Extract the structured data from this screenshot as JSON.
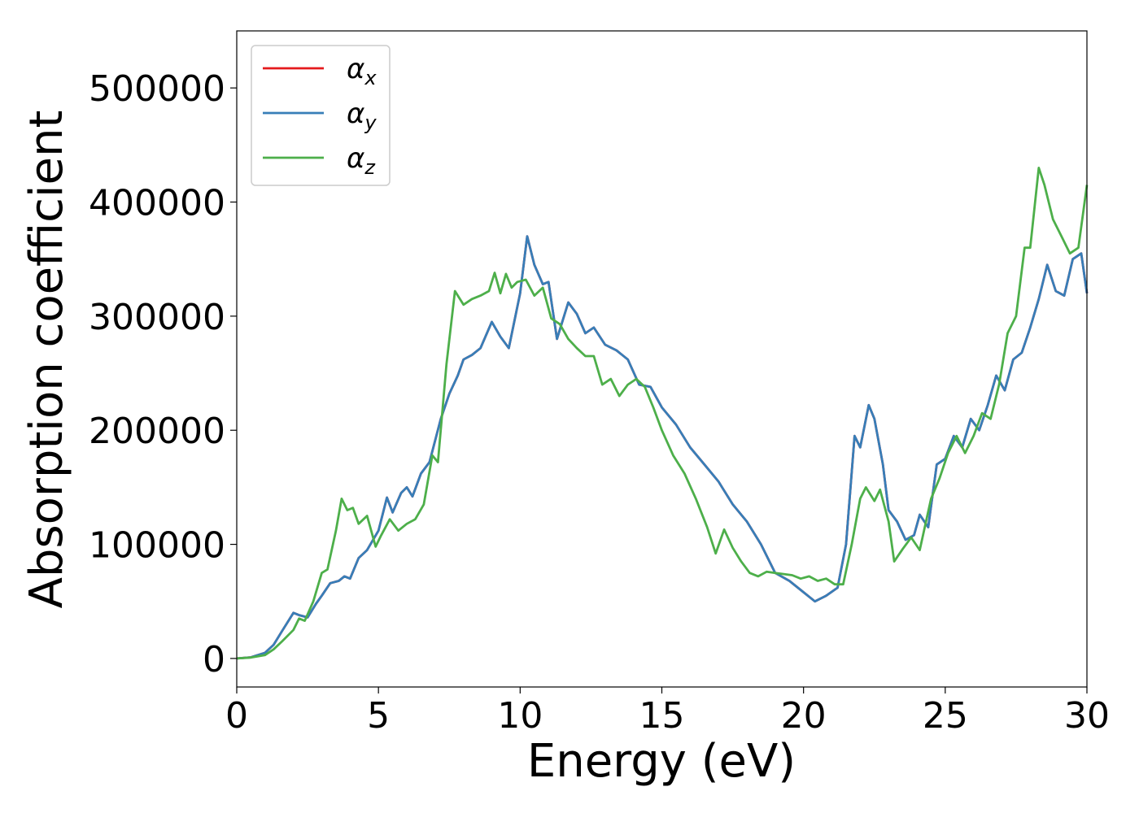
{
  "chart_data": {
    "type": "line",
    "title": "",
    "xlabel": "Energy (eV)",
    "ylabel": "Absorption coefficient",
    "xlim": [
      0,
      30
    ],
    "ylim": [
      -25000,
      550000
    ],
    "xticks": [
      0,
      5,
      10,
      15,
      20,
      25,
      30
    ],
    "yticks": [
      0,
      100000,
      200000,
      300000,
      400000,
      500000
    ],
    "xtick_labels": [
      "0",
      "5",
      "10",
      "15",
      "20",
      "25",
      "30"
    ],
    "ytick_labels": [
      "0",
      "100000",
      "200000",
      "300000",
      "400000",
      "500000"
    ],
    "grid": false,
    "legend_position": "top-left",
    "series": [
      {
        "name": "α_x",
        "legend_base": "α",
        "legend_sub": "x",
        "color": "#e41a1c",
        "x": [
          0,
          0.5,
          1.0,
          1.3,
          1.6,
          2.0,
          2.2,
          2.5,
          2.8,
          3.0,
          3.3,
          3.6,
          3.8,
          4.0,
          4.3,
          4.6,
          5.0,
          5.3,
          5.5,
          5.8,
          6.0,
          6.2,
          6.5,
          6.8,
          7.2,
          7.5,
          7.8,
          8.0,
          8.3,
          8.6,
          9.0,
          9.3,
          9.6,
          10.0,
          10.25,
          10.5,
          10.8,
          11.0,
          11.3,
          11.7,
          12.0,
          12.3,
          12.6,
          13.0,
          13.4,
          13.8,
          14.2,
          14.6,
          15.0,
          15.5,
          16.0,
          16.5,
          17.0,
          17.5,
          18.0,
          18.5,
          19.0,
          19.5,
          20.0,
          20.4,
          20.8,
          21.2,
          21.5,
          21.8,
          22.0,
          22.3,
          22.5,
          22.8,
          23.0,
          23.3,
          23.6,
          23.9,
          24.1,
          24.4,
          24.7,
          25.0,
          25.3,
          25.6,
          25.9,
          26.2,
          26.5,
          26.8,
          27.1,
          27.4,
          27.7,
          28.0,
          28.3,
          28.6,
          28.9,
          29.2,
          29.5,
          29.8,
          30.0
        ],
        "values": [
          0,
          1000,
          5000,
          12000,
          24000,
          40000,
          38000,
          36000,
          48000,
          55000,
          66000,
          68000,
          72000,
          70000,
          88000,
          95000,
          112000,
          141000,
          128000,
          145000,
          150000,
          142000,
          162000,
          172000,
          210000,
          232000,
          248000,
          262000,
          266000,
          272000,
          295000,
          282000,
          272000,
          320000,
          370000,
          345000,
          328000,
          330000,
          280000,
          312000,
          302000,
          285000,
          290000,
          275000,
          270000,
          262000,
          240000,
          238000,
          220000,
          205000,
          185000,
          170000,
          155000,
          135000,
          120000,
          100000,
          75000,
          68000,
          58000,
          50000,
          55000,
          62000,
          100000,
          195000,
          185000,
          222000,
          210000,
          170000,
          130000,
          120000,
          104000,
          108000,
          126000,
          115000,
          170000,
          175000,
          195000,
          185000,
          210000,
          200000,
          222000,
          248000,
          235000,
          262000,
          268000,
          290000,
          315000,
          345000,
          322000,
          318000,
          350000,
          355000,
          320000
        ]
      },
      {
        "name": "α_y",
        "legend_base": "α",
        "legend_sub": "y",
        "color": "#377eb8",
        "x": [
          0,
          0.5,
          1.0,
          1.3,
          1.6,
          2.0,
          2.2,
          2.5,
          2.8,
          3.0,
          3.3,
          3.6,
          3.8,
          4.0,
          4.3,
          4.6,
          5.0,
          5.3,
          5.5,
          5.8,
          6.0,
          6.2,
          6.5,
          6.8,
          7.2,
          7.5,
          7.8,
          8.0,
          8.3,
          8.6,
          9.0,
          9.3,
          9.6,
          10.0,
          10.25,
          10.5,
          10.8,
          11.0,
          11.3,
          11.7,
          12.0,
          12.3,
          12.6,
          13.0,
          13.4,
          13.8,
          14.2,
          14.6,
          15.0,
          15.5,
          16.0,
          16.5,
          17.0,
          17.5,
          18.0,
          18.5,
          19.0,
          19.5,
          20.0,
          20.4,
          20.8,
          21.2,
          21.5,
          21.8,
          22.0,
          22.3,
          22.5,
          22.8,
          23.0,
          23.3,
          23.6,
          23.9,
          24.1,
          24.4,
          24.7,
          25.0,
          25.3,
          25.6,
          25.9,
          26.2,
          26.5,
          26.8,
          27.1,
          27.4,
          27.7,
          28.0,
          28.3,
          28.6,
          28.9,
          29.2,
          29.5,
          29.8,
          30.0
        ],
        "values": [
          0,
          1000,
          5000,
          12000,
          24000,
          40000,
          38000,
          36000,
          48000,
          55000,
          66000,
          68000,
          72000,
          70000,
          88000,
          95000,
          112000,
          141000,
          128000,
          145000,
          150000,
          142000,
          162000,
          172000,
          210000,
          232000,
          248000,
          262000,
          266000,
          272000,
          295000,
          282000,
          272000,
          320000,
          370000,
          345000,
          328000,
          330000,
          280000,
          312000,
          302000,
          285000,
          290000,
          275000,
          270000,
          262000,
          240000,
          238000,
          220000,
          205000,
          185000,
          170000,
          155000,
          135000,
          120000,
          100000,
          75000,
          68000,
          58000,
          50000,
          55000,
          62000,
          100000,
          195000,
          185000,
          222000,
          210000,
          170000,
          130000,
          120000,
          104000,
          108000,
          126000,
          115000,
          170000,
          175000,
          195000,
          185000,
          210000,
          200000,
          222000,
          248000,
          235000,
          262000,
          268000,
          290000,
          315000,
          345000,
          322000,
          318000,
          350000,
          355000,
          320000
        ]
      },
      {
        "name": "α_z",
        "legend_base": "α",
        "legend_sub": "z",
        "color": "#4daf4a",
        "x": [
          0,
          0.5,
          1.0,
          1.3,
          1.6,
          2.0,
          2.2,
          2.4,
          2.7,
          3.0,
          3.2,
          3.5,
          3.7,
          3.9,
          4.1,
          4.3,
          4.6,
          4.9,
          5.1,
          5.4,
          5.7,
          6.0,
          6.3,
          6.6,
          6.9,
          7.1,
          7.4,
          7.7,
          8.0,
          8.3,
          8.6,
          8.9,
          9.1,
          9.3,
          9.5,
          9.7,
          9.9,
          10.2,
          10.5,
          10.8,
          11.1,
          11.4,
          11.7,
          12.0,
          12.3,
          12.6,
          12.9,
          13.2,
          13.5,
          13.8,
          14.1,
          14.4,
          14.7,
          15.0,
          15.4,
          15.8,
          16.2,
          16.6,
          16.9,
          17.2,
          17.5,
          17.8,
          18.1,
          18.4,
          18.7,
          19.0,
          19.3,
          19.6,
          19.9,
          20.2,
          20.5,
          20.8,
          21.1,
          21.4,
          21.7,
          22.0,
          22.2,
          22.5,
          22.7,
          23.0,
          23.2,
          23.5,
          23.8,
          24.1,
          24.5,
          24.8,
          25.1,
          25.4,
          25.7,
          26.0,
          26.3,
          26.6,
          26.9,
          27.2,
          27.5,
          27.8,
          28.0,
          28.3,
          28.5,
          28.8,
          29.1,
          29.4,
          29.7,
          30.0
        ],
        "values": [
          0,
          800,
          3000,
          8000,
          15000,
          25000,
          35000,
          33000,
          50000,
          75000,
          78000,
          112000,
          140000,
          130000,
          132000,
          118000,
          125000,
          98000,
          108000,
          122000,
          112000,
          118000,
          122000,
          135000,
          178000,
          172000,
          258000,
          322000,
          310000,
          315000,
          318000,
          322000,
          338000,
          320000,
          337000,
          325000,
          330000,
          332000,
          318000,
          325000,
          298000,
          293000,
          280000,
          272000,
          265000,
          265000,
          240000,
          245000,
          230000,
          240000,
          245000,
          238000,
          220000,
          200000,
          178000,
          162000,
          140000,
          115000,
          92000,
          113000,
          97000,
          85000,
          75000,
          72000,
          76000,
          75000,
          74000,
          73000,
          70000,
          72000,
          68000,
          70000,
          65000,
          65000,
          100000,
          140000,
          150000,
          138000,
          148000,
          120000,
          85000,
          96000,
          106000,
          95000,
          140000,
          158000,
          180000,
          195000,
          180000,
          195000,
          215000,
          210000,
          240000,
          285000,
          300000,
          360000,
          360000,
          430000,
          415000,
          385000,
          370000,
          355000,
          360000,
          415000
        ]
      }
    ]
  }
}
